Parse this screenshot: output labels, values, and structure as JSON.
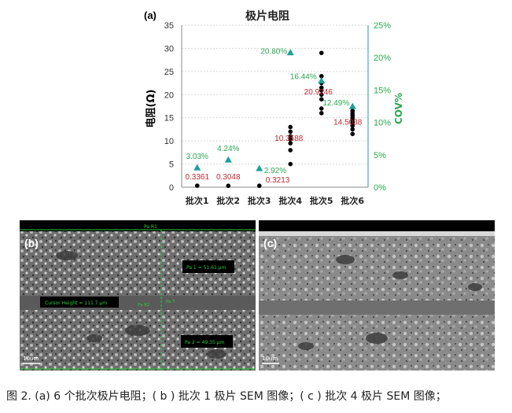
{
  "chart_data": {
    "type": "scatter",
    "title": "极片电阻",
    "panel_label": "(a)",
    "categories": [
      "批次1",
      "批次2",
      "批次3",
      "批次4",
      "批次5",
      "批次6"
    ],
    "ylabel": "电阻(Ω)",
    "y2label": "COV%",
    "ylim": [
      0,
      35
    ],
    "y2lim": [
      0,
      25
    ],
    "yticks": [
      "0",
      "5",
      "10",
      "15",
      "20",
      "25",
      "30",
      "35"
    ],
    "y2ticks": [
      "0%",
      "5%",
      "10%",
      "15%",
      "20%",
      "25%"
    ],
    "resistance_points": [
      [
        0.3361
      ],
      [
        0.3048
      ],
      [
        0.3213
      ],
      [
        5,
        8,
        9.5,
        10.3588,
        11,
        12,
        13
      ],
      [
        16,
        17,
        19,
        20,
        20.9246,
        21.5,
        22.5,
        24,
        29
      ],
      [
        11.5,
        12.5,
        13.3,
        14,
        14.5038,
        15,
        15.5,
        16,
        16.5
      ]
    ],
    "mean_labels": [
      "0.3361",
      "0.3048",
      "0.3213",
      "10.3588",
      "20.9246",
      "14.5038"
    ],
    "cov_values": [
      3.03,
      4.24,
      2.92,
      20.8,
      16.44,
      12.49
    ],
    "cov_labels": [
      "3.03%",
      "4.24%",
      "2.92%",
      "20.80%",
      "16.44%",
      "12.49%"
    ],
    "colors": {
      "points": "#000000",
      "mean_labels": "#c0282f",
      "cov": "#1aa19a",
      "cov_text": "#2aa84f",
      "axis": "#444444"
    }
  },
  "panel_b": {
    "label": "(b)",
    "top_marker": "Pa R1",
    "cursor_label": "Cursor Height = 111.7 μm",
    "pa1_label": "Pa 1 = 51.61 μm",
    "pa2_label": "Pa 2 = 49.35 μm",
    "pa_r2": "Pa R2",
    "pa_t": "Pa T",
    "scale_label": "10um"
  },
  "panel_c": {
    "label": "(c)",
    "scale_label": "10um"
  },
  "caption": "图 2. (a) 6 个批次极片电阻；( b ) 批次 1 极片 SEM 图像；( c ) 批次 4 极片 SEM 图像；"
}
